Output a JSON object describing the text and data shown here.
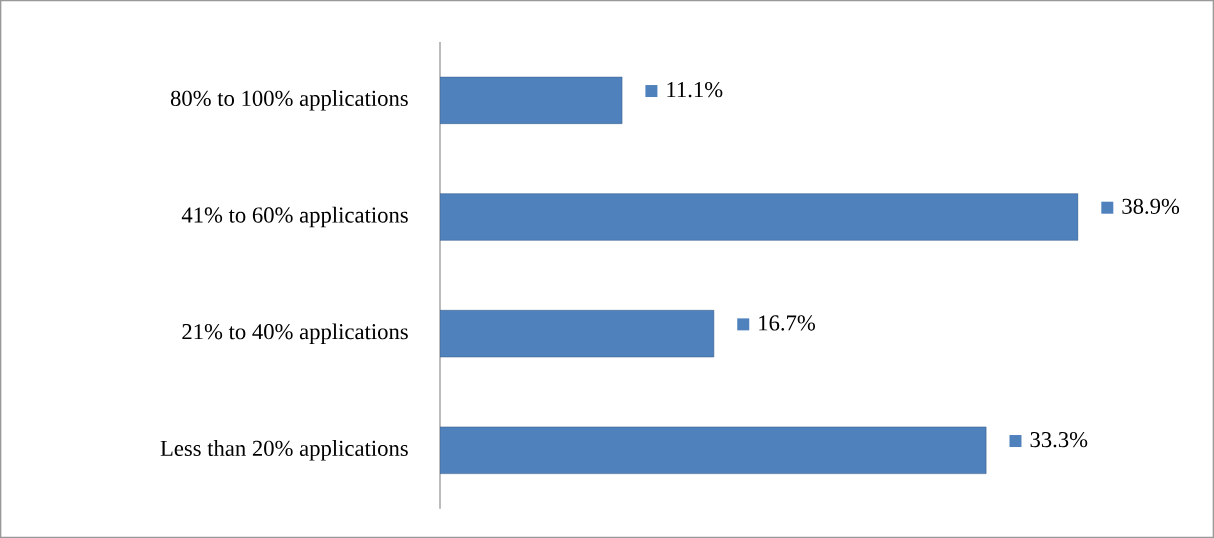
{
  "chart_data": {
    "type": "bar",
    "orientation": "horizontal",
    "categories": [
      "80% to 100% applications",
      "41% to 60% applications",
      "21% to 40% applications",
      "Less than 20% applications"
    ],
    "values": [
      11.1,
      38.9,
      16.7,
      33.3
    ],
    "value_labels": [
      "11.1%",
      "38.9%",
      "16.7%",
      "33.3%"
    ],
    "color": "#4f81bd"
  }
}
